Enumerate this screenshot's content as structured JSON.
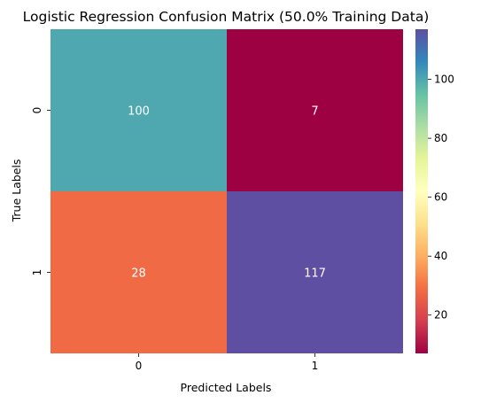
{
  "chart_data": {
    "type": "heatmap",
    "title": "Logistic Regression Confusion Matrix (50.0% Training Data)",
    "xlabel": "Predicted Labels",
    "ylabel": "True Labels",
    "x_categories": [
      "0",
      "1"
    ],
    "y_categories": [
      "0",
      "1"
    ],
    "values": [
      [
        100,
        7
      ],
      [
        28,
        117
      ]
    ],
    "colormap": "Spectral",
    "colorbar": {
      "range": [
        7,
        117
      ],
      "ticks": [
        "20",
        "40",
        "60",
        "80",
        "100"
      ]
    },
    "cell_colors": [
      [
        "#4fa7b0",
        "#9e0142"
      ],
      [
        "#ef6a45",
        "#5e4fa2"
      ]
    ]
  }
}
